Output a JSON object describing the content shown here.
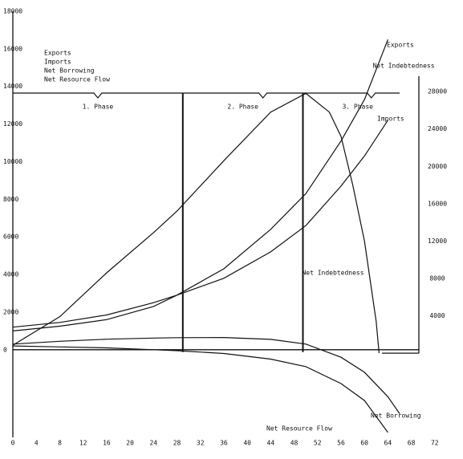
{
  "chart_data": {
    "type": "line",
    "y2label": "Net Indebtedness",
    "xlim": [
      -2.2,
      76
    ],
    "xticks": [
      0,
      4,
      8,
      12,
      16,
      20,
      24,
      28,
      32,
      36,
      40,
      44,
      48,
      52,
      56,
      60,
      64,
      68,
      72
    ],
    "ylim": [
      -5300,
      18000
    ],
    "yticks": [
      0,
      2000,
      4000,
      6000,
      8000,
      10000,
      12000,
      14000,
      16000,
      18000
    ],
    "y2lim": [
      -10300,
      36600
    ],
    "y2ticks": [
      4000,
      8000,
      12000,
      16000,
      20000,
      24000,
      28000
    ],
    "phases": [
      {
        "label": "1. Phase",
        "start": 0,
        "end": 29
      },
      {
        "label": "2. Phase",
        "start": 29,
        "end": 49.5
      },
      {
        "label": "3. Phase",
        "start": 49.5,
        "end": 66
      }
    ],
    "series": [
      {
        "name": "Exports",
        "color": "#111111",
        "x": [
          0,
          8,
          16,
          24,
          28,
          36,
          44,
          50,
          56,
          60,
          64
        ],
        "values": [
          1000,
          1250,
          1600,
          2300,
          2900,
          4300,
          6400,
          8300,
          11100,
          13300,
          16500
        ]
      },
      {
        "name": "Imports",
        "color": "#111111",
        "x": [
          0,
          8,
          16,
          24,
          28,
          36,
          44,
          50,
          56,
          60,
          64
        ],
        "values": [
          1200,
          1450,
          1850,
          2500,
          2900,
          3800,
          5200,
          6600,
          8700,
          10300,
          12200
        ]
      },
      {
        "name": "Net Borrowing",
        "color": "#111111",
        "x": [
          0,
          8,
          16,
          24,
          28,
          36,
          44,
          50,
          56,
          60,
          64,
          66
        ],
        "values": [
          300,
          450,
          560,
          620,
          640,
          650,
          550,
          300,
          -400,
          -1200,
          -2500,
          -3400
        ]
      },
      {
        "name": "Net Resource Flow",
        "color": "#111111",
        "x": [
          0,
          8,
          16,
          24,
          28,
          36,
          44,
          50,
          56,
          60,
          64
        ],
        "values": [
          200,
          150,
          100,
          0,
          -50,
          -200,
          -500,
          -900,
          -1800,
          -2700,
          -4400
        ]
      },
      {
        "name": "Net Indebtedness",
        "color": "#111111",
        "axis": "y2",
        "x": [
          0,
          8,
          16,
          24,
          28,
          36,
          44,
          50,
          54,
          56,
          58,
          60,
          62,
          62.5
        ],
        "values": [
          860,
          3900,
          8600,
          12900,
          15200,
          20600,
          25800,
          27800,
          25800,
          23200,
          18000,
          12000,
          3400,
          0
        ]
      }
    ]
  }
}
